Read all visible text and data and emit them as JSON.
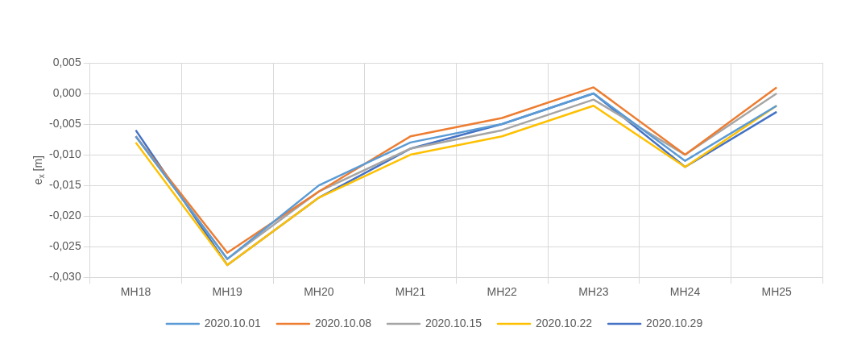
{
  "chart_data": {
    "type": "line",
    "ylabel": "e$_{x}$ [m]",
    "categories": [
      "MH18",
      "MH19",
      "MH20",
      "MH21",
      "MH22",
      "MH23",
      "MH24",
      "MH25"
    ],
    "series": [
      {
        "name": "2020.10.01",
        "color": "#5b9bd5",
        "values": [
          -0.007,
          -0.027,
          -0.015,
          -0.008,
          -0.005,
          0.0,
          -0.011,
          -0.002
        ]
      },
      {
        "name": "2020.10.08",
        "color": "#ed7d31",
        "values": [
          -0.007,
          -0.026,
          -0.016,
          -0.007,
          -0.004,
          0.001,
          -0.01,
          0.001
        ]
      },
      {
        "name": "2020.10.15",
        "color": "#a5a5a5",
        "values": [
          -0.007,
          -0.027,
          -0.016,
          -0.009,
          -0.006,
          -0.001,
          -0.01,
          0.0
        ]
      },
      {
        "name": "2020.10.22",
        "color": "#ffc000",
        "values": [
          -0.008,
          -0.028,
          -0.017,
          -0.01,
          -0.007,
          -0.002,
          -0.012,
          -0.002
        ]
      },
      {
        "name": "2020.10.29",
        "color": "#4472c4",
        "values": [
          -0.006,
          -0.028,
          -0.017,
          -0.009,
          -0.005,
          0.0,
          -0.012,
          -0.003
        ]
      }
    ],
    "ylim": [
      -0.03,
      0.005
    ],
    "yticks": [
      {
        "value": 0.005,
        "label": "0,005"
      },
      {
        "value": 0,
        "label": "0,000"
      },
      {
        "value": -0.005,
        "label": "-0,005"
      },
      {
        "value": -0.01,
        "label": "-0,010"
      },
      {
        "value": -0.015,
        "label": "-0,015"
      },
      {
        "value": -0.02,
        "label": "-0,020"
      },
      {
        "value": -0.025,
        "label": "-0,025"
      },
      {
        "value": -0.03,
        "label": "-0,030"
      }
    ],
    "grid": true,
    "legend": "bottom",
    "marker": "none",
    "line_style": "solid"
  }
}
